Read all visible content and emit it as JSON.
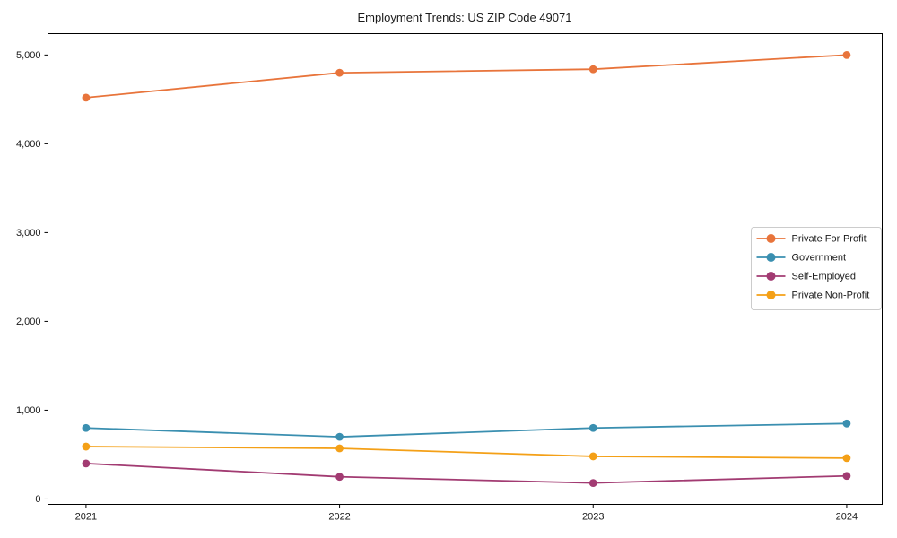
{
  "page": {
    "background": "#ffffff"
  },
  "chart_data": {
    "type": "line",
    "title": "Employment Trends: US ZIP Code 49071",
    "xlabel": "",
    "ylabel": "",
    "x": [
      2021,
      2022,
      2023,
      2024
    ],
    "x_tick_labels": [
      "2021",
      "2022",
      "2023",
      "2024"
    ],
    "series": [
      {
        "name": "Private For-Profit",
        "color": "#e8743b",
        "values": [
          4520,
          4800,
          4840,
          5000
        ]
      },
      {
        "name": "Government",
        "color": "#3a8fb0",
        "values": [
          800,
          700,
          800,
          850
        ]
      },
      {
        "name": "Self-Employed",
        "color": "#a23b72",
        "values": [
          400,
          250,
          180,
          260
        ]
      },
      {
        "name": "Private Non-Profit",
        "color": "#f4a017",
        "values": [
          590,
          570,
          480,
          460
        ]
      }
    ],
    "xlim": [
      2020.85,
      2024.14
    ],
    "ylim": [
      -61,
      5241
    ],
    "yticks": [
      0,
      1000,
      2000,
      3000,
      4000,
      5000
    ],
    "ytick_labels": [
      "0",
      "1,000",
      "2,000",
      "3,000",
      "4,000",
      "5,000"
    ],
    "grid": false,
    "marker": "circle",
    "legend": {
      "position": "center-right",
      "entries": [
        "Private For-Profit",
        "Government",
        "Self-Employed",
        "Private Non-Profit"
      ],
      "border_color": "#cccccc",
      "background": "#ffffff"
    },
    "axis_color": "#000000",
    "tick_label_color": "#1a1a1a"
  }
}
